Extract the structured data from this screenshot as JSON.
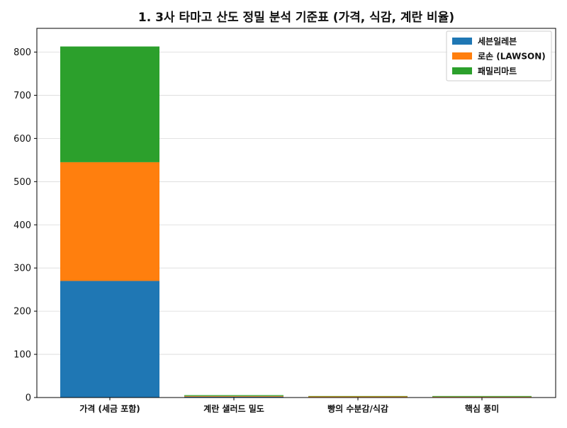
{
  "chart_data": {
    "type": "bar",
    "stacked": true,
    "title": "1. 3사 타마고 산도 정밀 분석 기준표 (가격, 식감, 계란 비율)",
    "xlabel": "",
    "ylabel": "",
    "categories": [
      "가격 (세금 포함)",
      "계란 샐러드 밀도",
      "빵의 수분감/식감",
      "핵심 풍미"
    ],
    "series": [
      {
        "name": "세븐일레븐",
        "color": "#1f77b4",
        "values": [
          270,
          2,
          1,
          1
        ]
      },
      {
        "name": "로손 (LAWSON)",
        "color": "#ff7f0e",
        "values": [
          275,
          1.5,
          1.5,
          1
        ]
      },
      {
        "name": "패밀리마트",
        "color": "#2ca02c",
        "values": [
          268,
          2,
          1,
          1.5
        ]
      }
    ],
    "ylim": [
      0,
      855
    ],
    "yticks": [
      "0",
      "100",
      "200",
      "300",
      "400",
      "500",
      "600",
      "700",
      "800"
    ],
    "grid": "horizontal",
    "legend_position": "top-right"
  }
}
